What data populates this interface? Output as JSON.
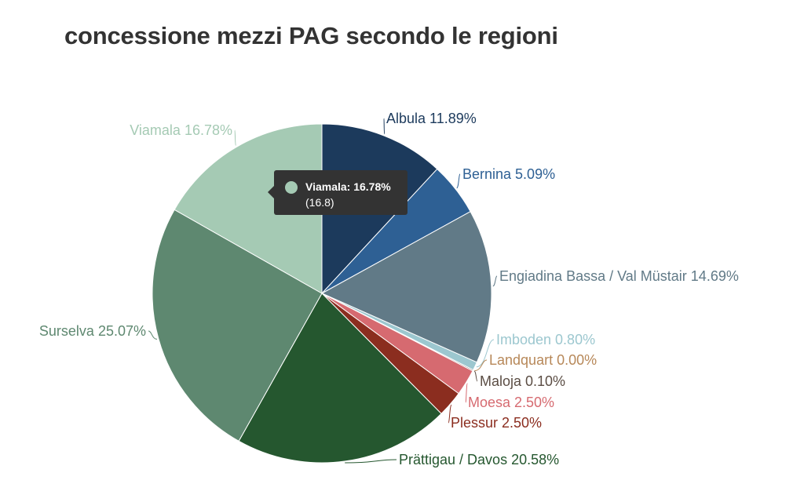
{
  "title": "concessione mezzi PAG secondo le regioni",
  "chart_data": {
    "type": "pie",
    "title": "concessione mezzi PAG secondo le regioni",
    "slices": [
      {
        "label": "Albula",
        "value": 11.89,
        "text": "Albula 11.89%",
        "color": "#1c3a5c"
      },
      {
        "label": "Bernina",
        "value": 5.09,
        "text": "Bernina 5.09%",
        "color": "#2e6094"
      },
      {
        "label": "Engiadina Bassa / Val Müstair",
        "value": 14.69,
        "text": "Engiadina Bassa / Val Müstair 14.69%",
        "color": "#617a87"
      },
      {
        "label": "Imboden",
        "value": 0.8,
        "text": "Imboden 0.80%",
        "color": "#9cc7cf"
      },
      {
        "label": "Landquart",
        "value": 0.0,
        "text": "Landquart 0.00%",
        "color": "#b78859"
      },
      {
        "label": "Maloja",
        "value": 0.1,
        "text": "Maloja 0.10%",
        "color": "#5b4d44"
      },
      {
        "label": "Moesa",
        "value": 2.5,
        "text": "Moesa 2.50%",
        "color": "#d66a70"
      },
      {
        "label": "Plessur",
        "value": 2.5,
        "text": "Plessur 2.50%",
        "color": "#8b2d1f"
      },
      {
        "label": "Prättigau / Davos",
        "value": 20.58,
        "text": "Prättigau / Davos 20.58%",
        "color": "#25572f"
      },
      {
        "label": "Surselva",
        "value": 25.07,
        "text": "Surselva 25.07%",
        "color": "#5e8870"
      },
      {
        "label": "Viamala",
        "value": 16.78,
        "text": "Viamala 16.78%",
        "color": "#a5cab4"
      }
    ]
  },
  "tooltip": {
    "line1": "Viamala: 16.78%",
    "line2": "(16.8)",
    "color": "#a5cab4"
  }
}
